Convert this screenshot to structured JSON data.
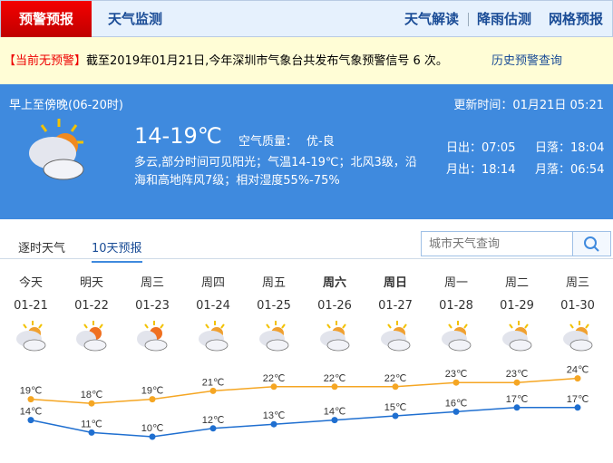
{
  "nav": {
    "active": "预警预报",
    "monitor": "天气监测",
    "right": [
      "天气解读",
      "降雨估测",
      "网格预报"
    ]
  },
  "alert": {
    "status": "【当前无预警】",
    "text": "截至2019年01月21日,今年深圳市气象台共发布气象预警信号 6 次。",
    "history_link": "历史预警查询"
  },
  "today": {
    "period": "早上至傍晚(06-20时)",
    "update": "更新时间：01月21日 05:21",
    "temp": "14-19℃",
    "aq_label": "空气质量：",
    "aq_value": "优-良",
    "desc1": "多云,部分时间可见阳光；气温14-19℃；北风3级，沿",
    "desc2": "海和高地阵风7级；相对湿度55%-75%",
    "sunrise": "日出：07:05",
    "sunset": "日落：18:04",
    "moonrise": "月出：18:14",
    "moonset": "月落：06:54",
    "icon": "partly-cloudy-icon"
  },
  "tabs": {
    "hourly": "逐时天气",
    "tenday": "10天预报"
  },
  "search": {
    "placeholder": "城市天气查询"
  },
  "colors": {
    "high": "#f5a623",
    "low": "#1f6fd0",
    "panel": "#3f8ade",
    "alert_red": "#e00000"
  },
  "chart_data": {
    "type": "line",
    "categories": [
      "01-21",
      "01-22",
      "01-23",
      "01-24",
      "01-25",
      "01-26",
      "01-27",
      "01-28",
      "01-29",
      "01-30"
    ],
    "weekdays": [
      "今天",
      "明天",
      "周三",
      "周四",
      "周五",
      "周六",
      "周日",
      "周一",
      "周二",
      "周三"
    ],
    "series": [
      {
        "values": [
          19,
          18,
          19,
          21,
          22,
          22,
          22,
          23,
          23,
          24
        ]
      },
      {
        "values": [
          14,
          11,
          10,
          12,
          13,
          14,
          15,
          16,
          17,
          17
        ]
      }
    ],
    "unit": "℃"
  }
}
